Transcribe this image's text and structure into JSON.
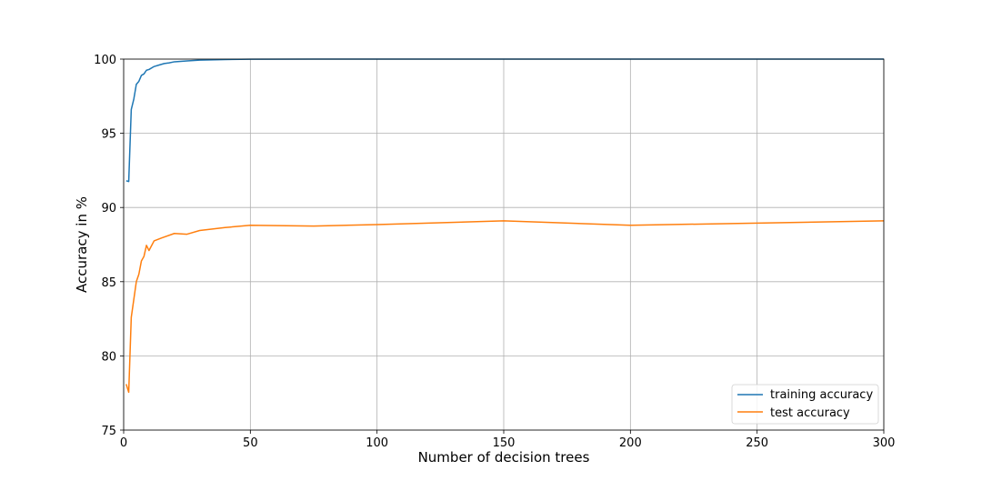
{
  "chart_data": {
    "type": "line",
    "title": "",
    "xlabel": "Number of decision trees",
    "ylabel": "Accuracy in %",
    "xlim": [
      0,
      300
    ],
    "ylim": [
      75,
      100
    ],
    "xticks": [
      0,
      50,
      100,
      150,
      200,
      250,
      300
    ],
    "yticks": [
      75,
      80,
      85,
      90,
      95,
      100
    ],
    "grid": true,
    "legend_position": "lower-right",
    "series": [
      {
        "name": "training accuracy",
        "color": "#1f77b4",
        "points": [
          [
            1,
            91.8
          ],
          [
            2,
            91.75
          ],
          [
            3,
            96.6
          ],
          [
            4,
            97.3
          ],
          [
            5,
            98.3
          ],
          [
            6,
            98.5
          ],
          [
            7,
            98.9
          ],
          [
            8,
            99.0
          ],
          [
            9,
            99.25
          ],
          [
            10,
            99.3
          ],
          [
            12,
            99.5
          ],
          [
            14,
            99.6
          ],
          [
            16,
            99.7
          ],
          [
            18,
            99.75
          ],
          [
            20,
            99.82
          ],
          [
            25,
            99.88
          ],
          [
            30,
            99.93
          ],
          [
            40,
            99.97
          ],
          [
            50,
            99.99
          ],
          [
            75,
            100.0
          ],
          [
            100,
            100.0
          ],
          [
            150,
            100.0
          ],
          [
            200,
            100.0
          ],
          [
            250,
            100.0
          ],
          [
            300,
            100.0
          ]
        ]
      },
      {
        "name": "test accuracy",
        "color": "#ff7f0e",
        "points": [
          [
            1,
            78.1
          ],
          [
            2,
            77.55
          ],
          [
            3,
            82.6
          ],
          [
            4,
            83.8
          ],
          [
            5,
            85.0
          ],
          [
            6,
            85.5
          ],
          [
            7,
            86.4
          ],
          [
            8,
            86.7
          ],
          [
            9,
            87.45
          ],
          [
            10,
            87.1
          ],
          [
            12,
            87.75
          ],
          [
            15,
            87.95
          ],
          [
            20,
            88.25
          ],
          [
            25,
            88.2
          ],
          [
            30,
            88.45
          ],
          [
            40,
            88.65
          ],
          [
            50,
            88.8
          ],
          [
            75,
            88.75
          ],
          [
            100,
            88.85
          ],
          [
            150,
            89.1
          ],
          [
            200,
            88.8
          ],
          [
            250,
            88.95
          ],
          [
            300,
            89.1
          ]
        ]
      }
    ]
  }
}
